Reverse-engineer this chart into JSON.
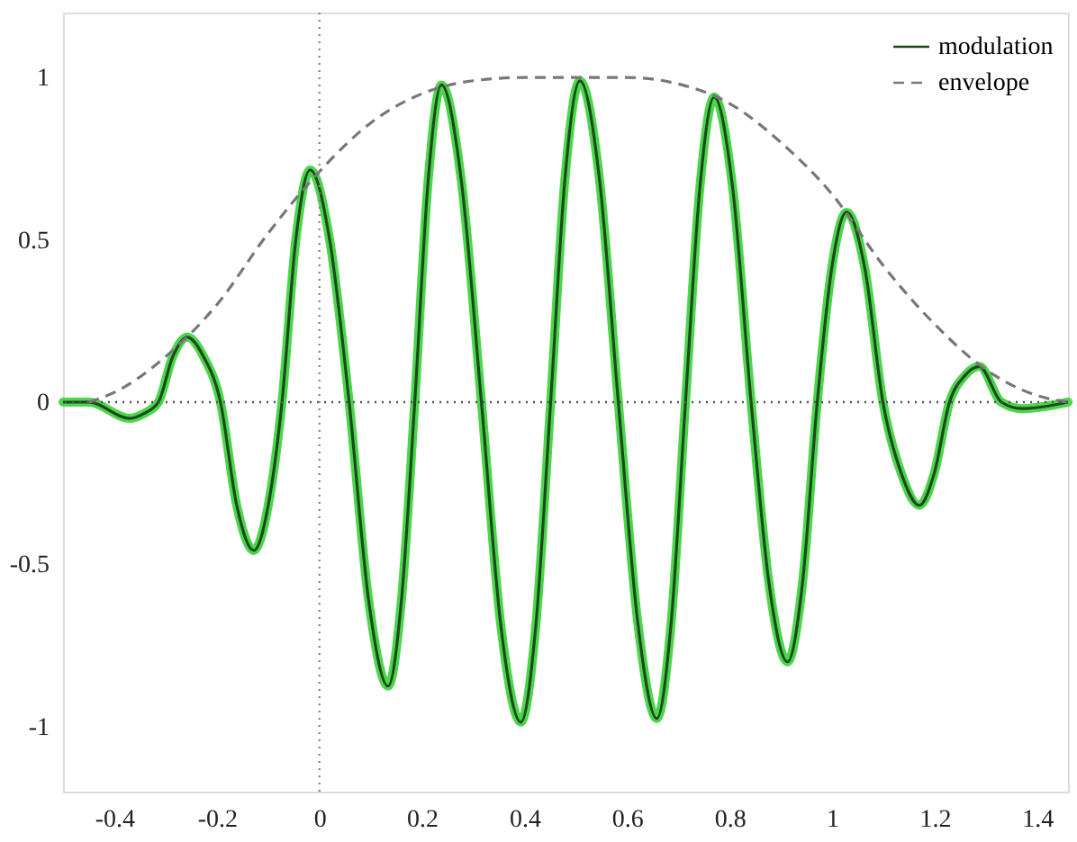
{
  "chart_data": {
    "type": "line",
    "xlim": [
      -0.5,
      1.46
    ],
    "ylim": [
      -1.2,
      1.2
    ],
    "xticks": [
      -0.4,
      -0.2,
      0,
      0.2,
      0.4,
      0.6,
      0.8,
      1,
      1.2,
      1.4
    ],
    "yticks": [
      -1,
      -0.5,
      0,
      0.5,
      1
    ],
    "grid": false,
    "legend": "top right",
    "marker": "none",
    "ref_lines": [
      {
        "axis": "y",
        "value": 0,
        "line_style": "dotted",
        "color": "#555555"
      },
      {
        "axis": "x",
        "value": 0,
        "line_style": "dotted",
        "color": "#888888"
      }
    ],
    "series": [
      {
        "color": "#4cd64c",
        "line_style": "solid",
        "x": [
          -0.5,
          -0.45,
          -0.37,
          -0.342,
          -0.314,
          -0.286,
          -0.258,
          -0.226,
          -0.193,
          -0.161,
          -0.128,
          -0.1,
          -0.073,
          -0.046,
          -0.018,
          0.02,
          0.058,
          0.096,
          0.134,
          0.16,
          0.186,
          0.212,
          0.238,
          0.277,
          0.316,
          0.354,
          0.393,
          0.422,
          0.451,
          0.479,
          0.508,
          0.546,
          0.583,
          0.621,
          0.658,
          0.686,
          0.714,
          0.742,
          0.77,
          0.806,
          0.842,
          0.877,
          0.913,
          0.942,
          0.971,
          0.999,
          1.028,
          1.064,
          1.099,
          1.135,
          1.17,
          1.199,
          1.229,
          1.258,
          1.287,
          1.33,
          1.37,
          1.46
        ],
        "values": [
          0,
          0,
          -0.05,
          -0.035,
          0,
          0.14,
          0.2,
          0.14,
          0,
          -0.32,
          -0.457,
          -0.32,
          0,
          0.5,
          0.715,
          0.5,
          0,
          -0.61,
          -0.875,
          -0.61,
          0,
          0.68,
          0.977,
          0.68,
          0,
          -0.69,
          -0.986,
          -0.69,
          0,
          0.69,
          0.99,
          0.69,
          0,
          -0.68,
          -0.975,
          -0.68,
          0,
          0.66,
          0.94,
          0.66,
          0,
          -0.56,
          -0.8,
          -0.56,
          0,
          0.41,
          0.585,
          0.41,
          0,
          -0.22,
          -0.318,
          -0.22,
          0,
          0.08,
          0.11,
          0,
          -0.02,
          0
        ]
      },
      {
        "name": "modulation",
        "color": "#1c4a1c",
        "line_style": "solid",
        "x": [
          -0.5,
          -0.45,
          -0.37,
          -0.342,
          -0.314,
          -0.286,
          -0.258,
          -0.226,
          -0.193,
          -0.161,
          -0.128,
          -0.1,
          -0.073,
          -0.046,
          -0.018,
          0.02,
          0.058,
          0.096,
          0.134,
          0.16,
          0.186,
          0.212,
          0.238,
          0.277,
          0.316,
          0.354,
          0.393,
          0.422,
          0.451,
          0.479,
          0.508,
          0.546,
          0.583,
          0.621,
          0.658,
          0.686,
          0.714,
          0.742,
          0.77,
          0.806,
          0.842,
          0.877,
          0.913,
          0.942,
          0.971,
          0.999,
          1.028,
          1.064,
          1.099,
          1.135,
          1.17,
          1.199,
          1.229,
          1.258,
          1.287,
          1.33,
          1.37,
          1.46
        ],
        "values": [
          0,
          0,
          -0.05,
          -0.035,
          0,
          0.14,
          0.2,
          0.14,
          0,
          -0.32,
          -0.457,
          -0.32,
          0,
          0.5,
          0.715,
          0.5,
          0,
          -0.61,
          -0.875,
          -0.61,
          0,
          0.68,
          0.977,
          0.68,
          0,
          -0.69,
          -0.986,
          -0.69,
          0,
          0.69,
          0.99,
          0.69,
          0,
          -0.68,
          -0.975,
          -0.68,
          0,
          0.66,
          0.94,
          0.66,
          0,
          -0.56,
          -0.8,
          -0.56,
          0,
          0.41,
          0.585,
          0.41,
          0,
          -0.22,
          -0.318,
          -0.22,
          0,
          0.08,
          0.11,
          0,
          -0.02,
          0
        ]
      },
      {
        "name": "envelope",
        "color": "#777777",
        "line_style": "dashed",
        "x": [
          -0.45,
          -0.4,
          -0.3,
          -0.2,
          -0.1,
          0,
          0.1,
          0.2,
          0.3,
          0.4,
          0.5,
          0.6,
          0.7,
          0.8,
          0.9,
          1.0,
          1.1,
          1.2,
          1.3,
          1.4,
          1.46
        ],
        "values": [
          0,
          0.03,
          0.14,
          0.3,
          0.52,
          0.71,
          0.86,
          0.95,
          0.99,
          1,
          1,
          1,
          0.98,
          0.92,
          0.8,
          0.64,
          0.42,
          0.24,
          0.1,
          0.02,
          0
        ]
      }
    ]
  }
}
